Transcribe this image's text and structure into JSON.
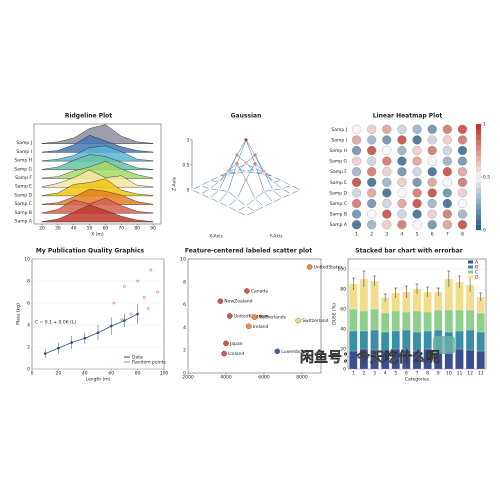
{
  "chart_data": [
    {
      "type": "ridgeline",
      "title": "Ridgeline Plot",
      "xlabel": "X (m)",
      "x": [
        20,
        30,
        40,
        50,
        60,
        70,
        80,
        90
      ],
      "xlim": [
        15,
        95
      ],
      "xticks": [
        20,
        30,
        40,
        50,
        60,
        70,
        80,
        90
      ],
      "series": [
        {
          "name": "Samp A",
          "color": "#c0392b",
          "values": [
            0.02,
            0.15,
            0.5,
            0.9,
            0.6,
            0.3,
            0.1,
            0.02
          ]
        },
        {
          "name": "Samp B",
          "color": "#d6604d",
          "values": [
            0.02,
            0.2,
            0.7,
            0.5,
            0.8,
            0.4,
            0.1,
            0.02
          ]
        },
        {
          "name": "Samp C",
          "color": "#e67e22",
          "values": [
            0.02,
            0.1,
            0.4,
            0.8,
            0.7,
            0.5,
            0.15,
            0.02
          ]
        },
        {
          "name": "Samp D",
          "color": "#f1c40f",
          "values": [
            0.02,
            0.15,
            0.6,
            0.7,
            0.9,
            0.3,
            0.1,
            0.02
          ]
        },
        {
          "name": "Samp E",
          "color": "#f5e79e",
          "values": [
            0.02,
            0.2,
            0.5,
            0.9,
            0.5,
            0.6,
            0.1,
            0.02
          ]
        },
        {
          "name": "Samp F",
          "color": "#a6d96a",
          "values": [
            0.02,
            0.1,
            0.4,
            0.6,
            0.9,
            0.5,
            0.2,
            0.02
          ]
        },
        {
          "name": "Samp G",
          "color": "#66c2a5",
          "values": [
            0.02,
            0.15,
            0.5,
            0.8,
            0.7,
            0.4,
            0.1,
            0.02
          ]
        },
        {
          "name": "Samp H",
          "color": "#5ab4d6",
          "values": [
            0.02,
            0.1,
            0.3,
            0.7,
            0.8,
            0.5,
            0.1,
            0.02
          ]
        },
        {
          "name": "Samp I",
          "color": "#4575b4",
          "values": [
            0.02,
            0.1,
            0.4,
            0.9,
            0.6,
            0.3,
            0.1,
            0.02
          ]
        },
        {
          "name": "Samp J",
          "color": "#8c8c9c",
          "values": [
            0.02,
            0.1,
            0.3,
            0.8,
            1.0,
            0.4,
            0.1,
            0.02
          ]
        }
      ]
    },
    {
      "type": "surface",
      "title": "Gaussian",
      "xlabel": "X-Axis",
      "ylabel": "Y-Axis",
      "zlabel": "Z-Axis",
      "zlim": [
        0,
        1
      ],
      "zticks": [
        0,
        0.5,
        1
      ],
      "z": [
        [
          0,
          0,
          0.01,
          0.01,
          0.01,
          0,
          0
        ],
        [
          0,
          0.02,
          0.08,
          0.14,
          0.08,
          0.02,
          0
        ],
        [
          0.01,
          0.08,
          0.37,
          0.61,
          0.37,
          0.08,
          0.01
        ],
        [
          0.01,
          0.14,
          0.61,
          1,
          0.61,
          0.14,
          0.01
        ],
        [
          0.01,
          0.08,
          0.37,
          0.61,
          0.37,
          0.08,
          0.01
        ],
        [
          0,
          0.02,
          0.08,
          0.14,
          0.08,
          0.02,
          0
        ],
        [
          0,
          0,
          0.01,
          0.01,
          0.01,
          0,
          0
        ]
      ]
    },
    {
      "type": "heatmap",
      "title": "Linear Heatmap Plot",
      "rows": [
        "Samp A",
        "Samp B",
        "Samp C",
        "Samp D",
        "Samp E",
        "Samp F",
        "Samp G",
        "Samp H",
        "Samp I",
        "Samp J"
      ],
      "x": [
        1,
        2,
        3,
        4,
        5,
        6,
        7,
        8
      ],
      "clim": [
        0,
        1
      ],
      "cticks": [
        0,
        0.5,
        1
      ],
      "values": [
        [
          0.1,
          0.3,
          0.6,
          0.8,
          0.5,
          0.2,
          0.7,
          0.9
        ],
        [
          0.2,
          0.5,
          0.9,
          0.4,
          0.1,
          0.6,
          0.8,
          0.3
        ],
        [
          0.8,
          0.2,
          0.4,
          0.7,
          0.9,
          0.3,
          0.1,
          0.5
        ],
        [
          0.4,
          0.7,
          0.1,
          0.5,
          0.8,
          0.9,
          0.2,
          0.6
        ],
        [
          0.9,
          0.1,
          0.3,
          0.6,
          0.2,
          0.7,
          0.5,
          0.8
        ],
        [
          0.3,
          0.8,
          0.6,
          0.2,
          0.4,
          0.1,
          0.9,
          0.7
        ],
        [
          0.6,
          0.4,
          0.8,
          0.1,
          0.7,
          0.5,
          0.3,
          0.2
        ],
        [
          0.2,
          0.9,
          0.5,
          0.3,
          0.6,
          0.8,
          0.4,
          0.1
        ],
        [
          0.7,
          0.3,
          0.2,
          0.9,
          0.1,
          0.4,
          0.6,
          0.8
        ],
        [
          0.5,
          0.6,
          0.7,
          0.4,
          0.3,
          0.2,
          0.8,
          0.9
        ]
      ]
    },
    {
      "type": "line",
      "title": "My Publication Quality Graphics",
      "xlabel": "Length (m)",
      "ylabel": "Mass (kg)",
      "annotation": "C = 0.1 + 0.06 (L)",
      "xlim": [
        0,
        100
      ],
      "xticks": [
        0,
        20,
        40,
        60,
        80,
        100
      ],
      "ylim": [
        0,
        10
      ],
      "yticks": [
        0,
        2,
        4,
        6,
        8,
        10
      ],
      "series": [
        {
          "name": "Data",
          "color": "#2f4f7f",
          "x": [
            10,
            20,
            30,
            40,
            50,
            60,
            70,
            80
          ],
          "values": [
            1.4,
            1.9,
            2.4,
            2.8,
            3.3,
            3.9,
            4.4,
            5.0
          ],
          "errors": [
            0.4,
            0.5,
            0.6,
            0.5,
            0.7,
            0.8,
            0.6,
            0.9
          ]
        },
        {
          "name": "Random points",
          "color": "#e377a8",
          "x": [
            62,
            70,
            75,
            80,
            85,
            90,
            95,
            68,
            88
          ],
          "values": [
            6,
            7.5,
            5,
            8,
            6.5,
            9,
            7,
            4.5,
            5.5
          ]
        }
      ]
    },
    {
      "type": "scatter",
      "title": "Feature-centered labeled scatter plot",
      "xlim": [
        2000,
        9000
      ],
      "xticks": [
        2000,
        4000,
        6000,
        8000
      ],
      "ylim": [
        0,
        10
      ],
      "yticks": [
        0,
        2,
        4,
        6,
        8,
        10
      ],
      "labels": [
        "UnitedStates",
        "Canada",
        "NewZealand",
        "UnitedKingdom",
        "Netherlands",
        "Switzerland",
        "Ireland",
        "Japan",
        "Iceland",
        "Luxembourg"
      ],
      "x": [
        8400,
        5100,
        3700,
        4200,
        5500,
        7800,
        5200,
        4000,
        3900,
        6700
      ],
      "values": [
        9.3,
        7.2,
        6.3,
        5.0,
        4.9,
        4.6,
        4.1,
        2.6,
        1.7,
        1.9
      ],
      "colors": [
        "#f08a3c",
        "#d9534f",
        "#d9534f",
        "#d9534f",
        "#f08a3c",
        "#f5d76e",
        "#f08a3c",
        "#d9534f",
        "#d9534f",
        "#3b5fb0"
      ]
    },
    {
      "type": "stacked_bar",
      "title": "Stacked bar chart with errorbar",
      "xlabel": "Categories",
      "ylabel": "DUSE (%)",
      "categories": [
        "1",
        "2",
        "3",
        "4",
        "5",
        "6",
        "7",
        "8",
        "9",
        "10",
        "11",
        "12",
        "13"
      ],
      "ylim": [
        0,
        110
      ],
      "yticks": [
        0,
        20,
        40,
        60,
        80,
        100
      ],
      "series": [
        {
          "name": "A",
          "color": "#3b4f8f",
          "values": [
            18,
            20,
            19,
            18,
            20,
            19,
            18,
            20,
            19,
            18,
            20,
            19,
            18
          ]
        },
        {
          "name": "B",
          "color": "#3a8fa6",
          "values": [
            20,
            18,
            20,
            19,
            18,
            20,
            19,
            18,
            20,
            19,
            18,
            20,
            19
          ]
        },
        {
          "name": "C",
          "color": "#8fcf8c",
          "values": [
            22,
            20,
            21,
            19,
            20,
            18,
            21,
            19,
            20,
            22,
            21,
            20,
            19
          ]
        },
        {
          "name": "D",
          "color": "#f2dd8c",
          "values": [
            25,
            32,
            28,
            15,
            18,
            20,
            22,
            20,
            18,
            31,
            28,
            25,
            16
          ],
          "errors": [
            6,
            8,
            5,
            4,
            5,
            6,
            5,
            5,
            4,
            8,
            6,
            7,
            4
          ]
        }
      ]
    }
  ],
  "watermark": "闲鱼号：今天吃什么呢"
}
